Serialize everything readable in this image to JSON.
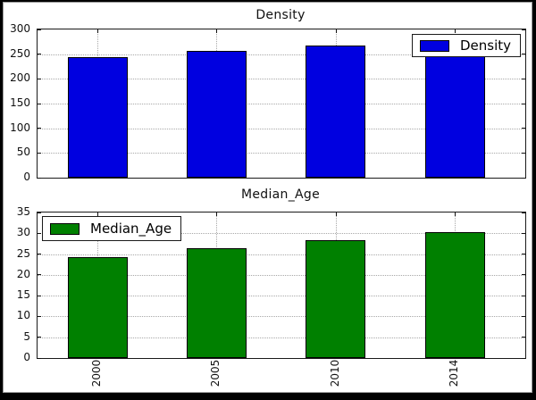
{
  "figure": {
    "background": "#ffffff",
    "frame_color": "#000000",
    "grid_color": "#a8a8a8",
    "axis_color": "#1a1a1a"
  },
  "chart_data": [
    {
      "type": "bar",
      "title": "Density",
      "legend": "Density",
      "legend_position": "upper right",
      "categories": [
        "2000",
        "2005",
        "2010",
        "2014"
      ],
      "values": [
        244,
        257,
        268,
        278
      ],
      "ylim": [
        0,
        300
      ],
      "yticks": [
        0,
        50,
        100,
        150,
        200,
        250,
        300
      ],
      "bar_color": "#0000e0",
      "grid": "on",
      "x_tick_labels_visible": false
    },
    {
      "type": "bar",
      "title": "Median_Age",
      "legend": "Median_Age",
      "legend_position": "upper left",
      "categories": [
        "2000",
        "2005",
        "2010",
        "2014"
      ],
      "values": [
        24.3,
        26.4,
        28.4,
        30.3
      ],
      "ylim": [
        0,
        35
      ],
      "yticks": [
        0,
        5,
        10,
        15,
        20,
        25,
        30,
        35
      ],
      "bar_color": "#008000",
      "grid": "on",
      "x_tick_labels_visible": true
    }
  ]
}
